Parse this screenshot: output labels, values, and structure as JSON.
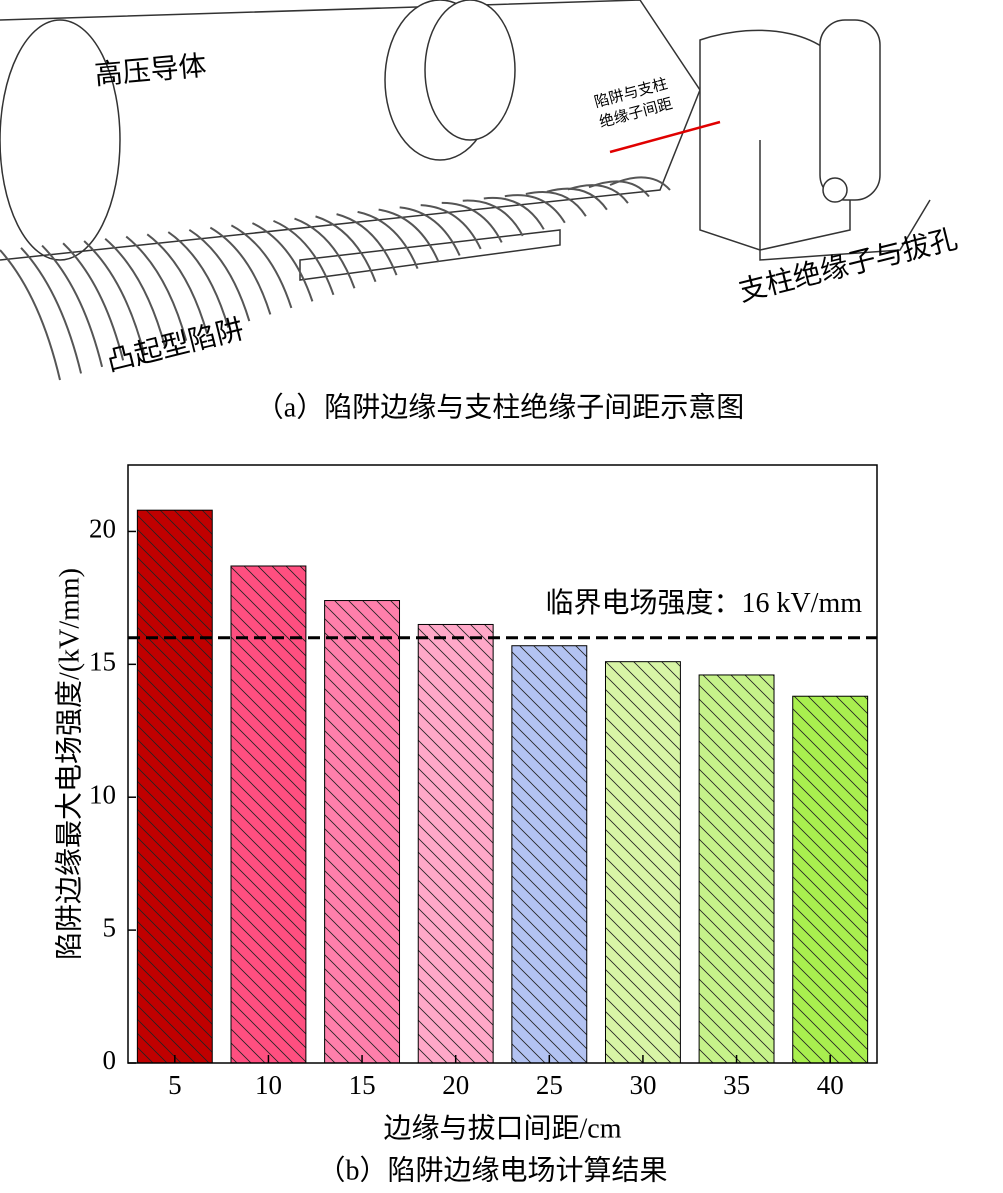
{
  "figure_a": {
    "conductor_label": "高压导体",
    "gap_label_line1": "陷阱与支柱",
    "gap_label_line2": "绝缘子间距",
    "insulator_label": "支柱绝缘子与拔孔",
    "trap_label": "凸起型陷阱",
    "caption": "（a）陷阱边缘与支柱绝缘子间距示意图"
  },
  "chart_data": {
    "type": "bar",
    "categories": [
      "5",
      "10",
      "15",
      "20",
      "25",
      "30",
      "35",
      "40"
    ],
    "values": [
      20.8,
      18.7,
      17.4,
      16.5,
      15.7,
      15.1,
      14.6,
      13.8
    ],
    "colors": [
      "#c00000",
      "#ff4f80",
      "#ff7fab",
      "#ffa8c8",
      "#b3c3f2",
      "#d8f5a6",
      "#c6f28a",
      "#a9ef4f"
    ],
    "hatch": true,
    "x_label": "边缘与拔口间距/cm",
    "y_label": "陷阱边缘最大电场强度/(kV/mm)",
    "ylim": [
      0,
      22.5
    ],
    "yticks": [
      0,
      5,
      10,
      15,
      20
    ],
    "threshold": 16,
    "threshold_label": "临界电场强度：16 kV/mm",
    "caption": "（b）陷阱边缘电场计算结果"
  }
}
